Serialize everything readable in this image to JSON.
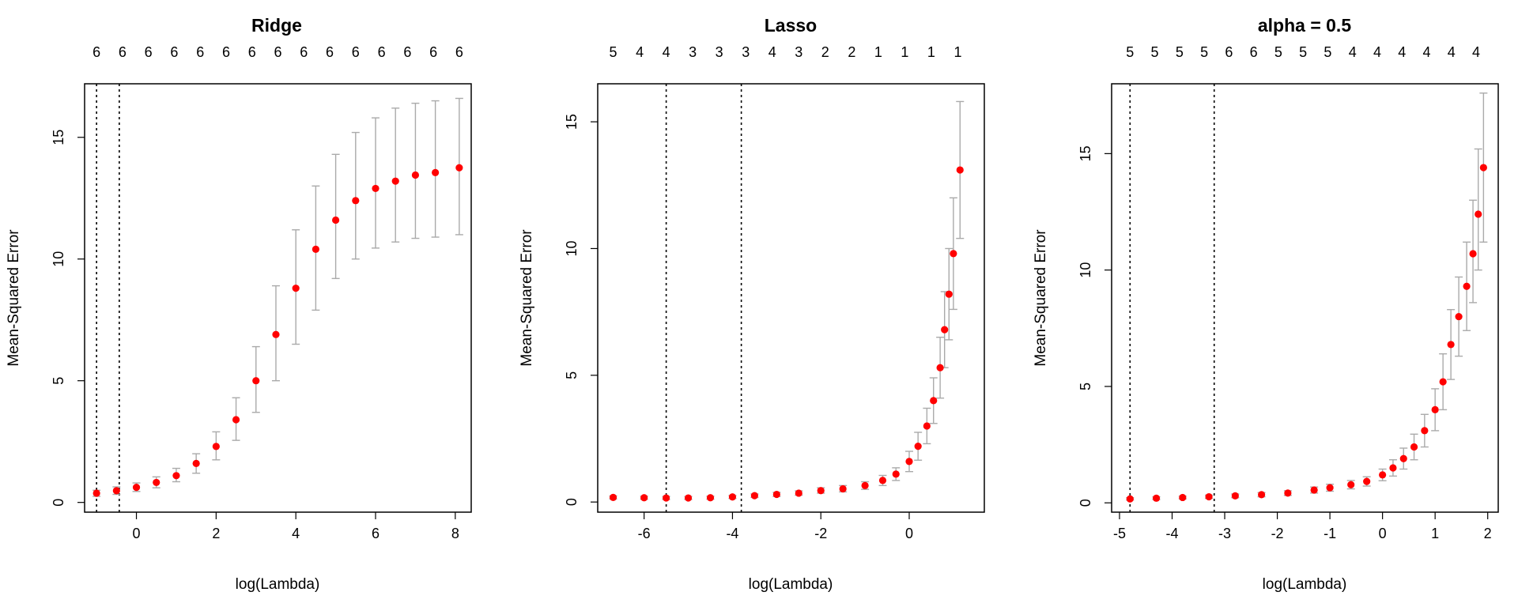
{
  "chart_data": [
    {
      "type": "scatter",
      "title": "Ridge",
      "xlabel": "log(Lambda)",
      "ylabel": "Mean-Squared Error",
      "xlim": [
        -1.3,
        8.4
      ],
      "ylim": [
        -0.4,
        17.2
      ],
      "x_ticks": [
        0,
        2,
        4,
        6,
        8
      ],
      "y_ticks": [
        0,
        5,
        10,
        15
      ],
      "top_axis": {
        "positions": [
          -1,
          -0.35,
          0.3,
          0.95,
          1.6,
          2.25,
          2.9,
          3.55,
          4.2,
          4.85,
          5.5,
          6.15,
          6.8,
          7.45,
          8.1
        ],
        "labels": [
          "6",
          "6",
          "6",
          "6",
          "6",
          "6",
          "6",
          "6",
          "6",
          "6",
          "6",
          "6",
          "6",
          "6",
          "6"
        ]
      },
      "vlines": [
        -1.0,
        -0.43
      ],
      "point_color": "#ff0000",
      "errorbar_color": "#aaaaaa",
      "series": [
        {
          "x": [
            -1.0,
            -0.5,
            0.0,
            0.5,
            1.0,
            1.5,
            2.0,
            2.5,
            3.0,
            3.5,
            4.0,
            4.5,
            5.0,
            5.5,
            6.0,
            6.5,
            7.0,
            7.5,
            8.1
          ],
          "y": [
            0.38,
            0.48,
            0.62,
            0.82,
            1.1,
            1.6,
            2.3,
            3.4,
            5.0,
            6.9,
            8.8,
            10.4,
            11.6,
            12.4,
            12.9,
            13.2,
            13.45,
            13.55,
            13.75
          ],
          "y_lower": [
            0.25,
            0.33,
            0.45,
            0.6,
            0.85,
            1.2,
            1.75,
            2.55,
            3.7,
            5.0,
            6.5,
            7.9,
            9.2,
            10.0,
            10.45,
            10.7,
            10.85,
            10.9,
            11.0
          ],
          "y_upper": [
            0.5,
            0.64,
            0.8,
            1.05,
            1.4,
            2.0,
            2.9,
            4.3,
            6.4,
            8.9,
            11.2,
            13.0,
            14.3,
            15.2,
            15.8,
            16.2,
            16.4,
            16.5,
            16.6
          ]
        }
      ]
    },
    {
      "type": "scatter",
      "title": "Lasso",
      "xlabel": "log(Lambda)",
      "ylabel": "Mean-Squared Error",
      "xlim": [
        -7.05,
        1.7
      ],
      "ylim": [
        -0.4,
        16.5
      ],
      "x_ticks": [
        -6,
        -4,
        -2,
        0
      ],
      "y_ticks": [
        0,
        5,
        10,
        15
      ],
      "top_axis": {
        "positions": [
          -6.7,
          -6.1,
          -5.5,
          -4.9,
          -4.3,
          -3.7,
          -3.1,
          -2.5,
          -1.9,
          -1.3,
          -0.7,
          -0.1,
          0.5,
          1.1
        ],
        "labels": [
          "5",
          "4",
          "4",
          "3",
          "3",
          "3",
          "4",
          "3",
          "2",
          "2",
          "1",
          "1",
          "1",
          "1",
          "1"
        ]
      },
      "vlines": [
        -5.5,
        -3.8
      ],
      "point_color": "#ff0000",
      "errorbar_color": "#aaaaaa",
      "series": [
        {
          "x": [
            -6.7,
            -6.0,
            -5.5,
            -5.0,
            -4.5,
            -4.0,
            -3.5,
            -3.0,
            -2.5,
            -2.0,
            -1.5,
            -1.0,
            -0.6,
            -0.3,
            0.0,
            0.2,
            0.4,
            0.55,
            0.7,
            0.8,
            0.9,
            1.0,
            1.15
          ],
          "y": [
            0.18,
            0.17,
            0.16,
            0.16,
            0.17,
            0.2,
            0.25,
            0.3,
            0.35,
            0.45,
            0.52,
            0.65,
            0.85,
            1.1,
            1.6,
            2.2,
            3.0,
            4.0,
            5.3,
            6.8,
            8.2,
            9.8,
            13.1
          ],
          "y_lower": [
            0.12,
            0.11,
            0.1,
            0.1,
            0.11,
            0.14,
            0.18,
            0.22,
            0.27,
            0.35,
            0.4,
            0.5,
            0.65,
            0.85,
            1.2,
            1.65,
            2.3,
            3.1,
            4.1,
            5.3,
            6.4,
            7.6,
            10.4
          ],
          "y_upper": [
            0.24,
            0.23,
            0.22,
            0.22,
            0.23,
            0.26,
            0.32,
            0.38,
            0.44,
            0.56,
            0.65,
            0.8,
            1.05,
            1.35,
            2.0,
            2.75,
            3.7,
            4.9,
            6.5,
            8.3,
            10.0,
            12.0,
            15.8
          ]
        }
      ]
    },
    {
      "type": "scatter",
      "title": "alpha = 0.5",
      "xlabel": "log(Lambda)",
      "ylabel": "Mean-Squared Error",
      "xlim": [
        -5.15,
        2.2
      ],
      "ylim": [
        -0.4,
        18.0
      ],
      "x_ticks": [
        -5,
        -4,
        -3,
        -2,
        -1,
        0,
        1,
        2
      ],
      "y_ticks": [
        0,
        5,
        10,
        15
      ],
      "top_axis": {
        "positions": [
          -4.8,
          -4.33,
          -3.86,
          -3.39,
          -2.92,
          -2.45,
          -1.98,
          -1.51,
          -1.04,
          -0.57,
          -0.1,
          0.37,
          0.84,
          1.31,
          1.78
        ],
        "labels": [
          "5",
          "5",
          "5",
          "5",
          "6",
          "6",
          "5",
          "5",
          "5",
          "4",
          "4",
          "4",
          "4",
          "4",
          "4"
        ]
      },
      "vlines": [
        -4.8,
        -3.2
      ],
      "point_color": "#ff0000",
      "errorbar_color": "#aaaaaa",
      "series": [
        {
          "x": [
            -4.8,
            -4.3,
            -3.8,
            -3.3,
            -2.8,
            -2.3,
            -1.8,
            -1.3,
            -1.0,
            -0.6,
            -0.3,
            0.0,
            0.2,
            0.4,
            0.6,
            0.8,
            1.0,
            1.15,
            1.3,
            1.45,
            1.6,
            1.72,
            1.82,
            1.92
          ],
          "y": [
            0.17,
            0.2,
            0.23,
            0.26,
            0.3,
            0.35,
            0.42,
            0.55,
            0.65,
            0.78,
            0.92,
            1.2,
            1.5,
            1.9,
            2.4,
            3.1,
            4.0,
            5.2,
            6.8,
            8.0,
            9.3,
            10.7,
            12.4,
            14.4
          ],
          "y_lower": [
            0.12,
            0.14,
            0.17,
            0.19,
            0.22,
            0.26,
            0.32,
            0.42,
            0.5,
            0.6,
            0.72,
            0.95,
            1.15,
            1.45,
            1.85,
            2.4,
            3.1,
            4.0,
            5.3,
            6.3,
            7.4,
            8.6,
            10.0,
            11.2
          ],
          "y_upper": [
            0.22,
            0.26,
            0.29,
            0.33,
            0.38,
            0.44,
            0.52,
            0.68,
            0.8,
            0.96,
            1.12,
            1.45,
            1.85,
            2.35,
            2.95,
            3.8,
            4.9,
            6.4,
            8.3,
            9.7,
            11.2,
            13.0,
            15.2,
            17.6
          ]
        }
      ]
    }
  ]
}
